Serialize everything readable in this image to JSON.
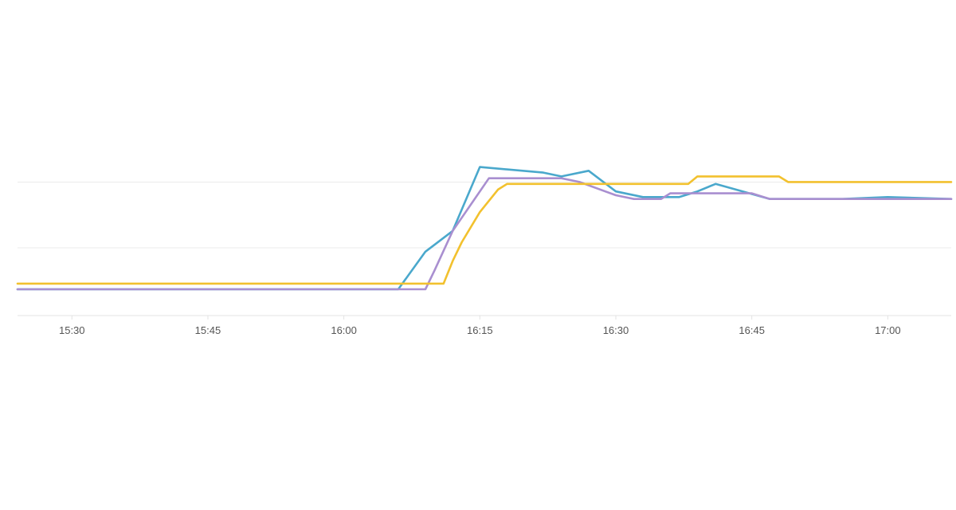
{
  "chart_data": {
    "type": "line",
    "title": "",
    "xlabel": "",
    "ylabel": "",
    "x_ticks": [
      "15:30",
      "15:45",
      "16:00",
      "16:15",
      "16:30",
      "16:45",
      "17:00"
    ],
    "x_range": [
      "15:24",
      "17:07"
    ],
    "y_range": [
      0,
      10
    ],
    "y_gridlines": [
      3.6,
      7.1
    ],
    "y_tick_labels_shown": false,
    "legend": "none",
    "series": [
      {
        "color": "#4aa8cc",
        "points": [
          [
            "15:24",
            1.4
          ],
          [
            "16:06",
            1.4
          ],
          [
            "16:09",
            3.4
          ],
          [
            "16:12",
            4.5
          ],
          [
            "16:15",
            7.9
          ],
          [
            "16:22",
            7.6
          ],
          [
            "16:24",
            7.4
          ],
          [
            "16:27",
            7.7
          ],
          [
            "16:30",
            6.6
          ],
          [
            "16:33",
            6.3
          ],
          [
            "16:37",
            6.3
          ],
          [
            "16:39",
            6.6
          ],
          [
            "16:41",
            7.0
          ],
          [
            "16:44",
            6.6
          ],
          [
            "16:47",
            6.2
          ],
          [
            "16:55",
            6.2
          ],
          [
            "17:00",
            6.3
          ],
          [
            "17:07",
            6.2
          ]
        ]
      },
      {
        "color": "#a98fd0",
        "points": [
          [
            "15:24",
            1.4
          ],
          [
            "16:09",
            1.4
          ],
          [
            "16:10",
            2.4
          ],
          [
            "16:12",
            4.5
          ],
          [
            "16:16",
            7.3
          ],
          [
            "16:24",
            7.3
          ],
          [
            "16:26",
            7.1
          ],
          [
            "16:30",
            6.4
          ],
          [
            "16:32",
            6.2
          ],
          [
            "16:35",
            6.2
          ],
          [
            "16:36",
            6.5
          ],
          [
            "16:45",
            6.5
          ],
          [
            "16:47",
            6.2
          ],
          [
            "17:07",
            6.2
          ]
        ]
      },
      {
        "color": "#f2c12e",
        "points": [
          [
            "15:24",
            1.7
          ],
          [
            "16:11",
            1.7
          ],
          [
            "16:12",
            2.9
          ],
          [
            "16:13",
            3.9
          ],
          [
            "16:15",
            5.5
          ],
          [
            "16:17",
            6.7
          ],
          [
            "16:18",
            7.0
          ],
          [
            "16:38",
            7.0
          ],
          [
            "16:39",
            7.4
          ],
          [
            "16:48",
            7.4
          ],
          [
            "16:49",
            7.1
          ],
          [
            "17:07",
            7.1
          ]
        ]
      }
    ]
  }
}
